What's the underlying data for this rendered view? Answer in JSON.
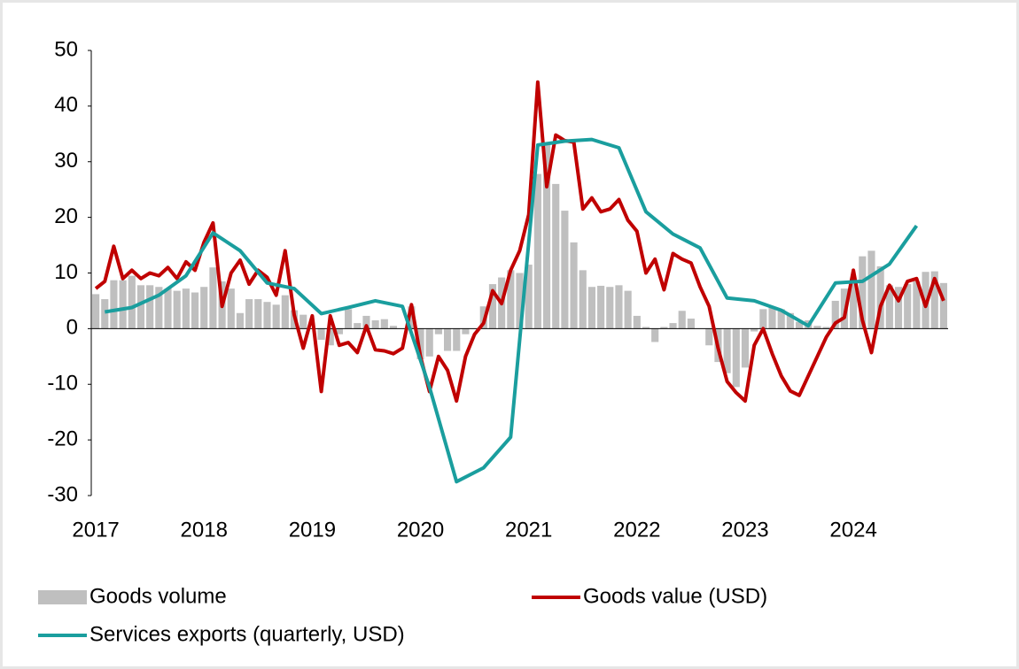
{
  "chart_data": {
    "type": "bar_line",
    "x": [
      0,
      1,
      2,
      3,
      4,
      5,
      6,
      7,
      8,
      9,
      10,
      11,
      12,
      13,
      14,
      15,
      16,
      17,
      18,
      19,
      20,
      21,
      22,
      23,
      24,
      25,
      26,
      27,
      28,
      29,
      30,
      31,
      32,
      33,
      34,
      35,
      36,
      37,
      38,
      39,
      40,
      41,
      42,
      43,
      44,
      45,
      46,
      47,
      48,
      49,
      50,
      51,
      52,
      53,
      54,
      55,
      56,
      57,
      58,
      59,
      60,
      61,
      62,
      63,
      64,
      65,
      66,
      67,
      68,
      69,
      70,
      71,
      72,
      73,
      74,
      75,
      76,
      77,
      78,
      79,
      80,
      81,
      82,
      83,
      84,
      85,
      86,
      87,
      88,
      89,
      90,
      91,
      92,
      93,
      94
    ],
    "xlim": [
      -0.5,
      94.5
    ],
    "xticks": [
      {
        "value": 0,
        "label": "2017"
      },
      {
        "value": 12,
        "label": "2018"
      },
      {
        "value": 24,
        "label": "2019"
      },
      {
        "value": 36,
        "label": "2020"
      },
      {
        "value": 48,
        "label": "2021"
      },
      {
        "value": 60,
        "label": "2022"
      },
      {
        "value": 72,
        "label": "2023"
      },
      {
        "value": 84,
        "label": "2024"
      }
    ],
    "ylim": [
      -30,
      50
    ],
    "yticks": [
      -30,
      -20,
      -10,
      0,
      10,
      20,
      30,
      40,
      50
    ],
    "grid": false,
    "series": [
      {
        "name": "Goods volume",
        "kind": "bar",
        "color": "#bfbfbf",
        "values": [
          6.2,
          5.3,
          8.7,
          8.7,
          9.5,
          7.8,
          7.8,
          7.5,
          7.2,
          6.8,
          7.2,
          6.5,
          7.5,
          11,
          8.5,
          7.2,
          2.8,
          5.3,
          5.3,
          4.8,
          4.3,
          6,
          3.3,
          2.5,
          0,
          -2,
          -3,
          -1,
          3.5,
          1,
          2.3,
          1.5,
          1.7,
          0.5,
          0,
          4,
          -5.5,
          -5,
          -1,
          -4,
          -4,
          -1,
          0,
          4,
          8,
          9.2,
          10.5,
          10,
          11.5,
          27.8,
          33,
          26,
          21.2,
          15.5,
          10.5,
          7.5,
          7.7,
          7.5,
          7.8,
          6.8,
          2.3,
          0.3,
          -2.4,
          0.3,
          1,
          3.2,
          1.8,
          0,
          -3,
          -6,
          -8,
          -10.5,
          -7,
          -0.5,
          3.5,
          3.8,
          3.5,
          2.8,
          1.2,
          1.5,
          0.5,
          0.3,
          5,
          7.2,
          8.8,
          13,
          14,
          11.2,
          7.8,
          7.5,
          8,
          8.5,
          10.2,
          10.3,
          8.2
        ]
      },
      {
        "name": "Goods value (USD)",
        "kind": "line",
        "color": "#c00000",
        "values": [
          7.2,
          8.5,
          14.8,
          9,
          10.5,
          9,
          10,
          9.5,
          11,
          9,
          12,
          10.5,
          15.5,
          19,
          4,
          10,
          12.3,
          8,
          10.5,
          9.2,
          6,
          14,
          2.5,
          -3.5,
          2.3,
          -11.3,
          2.3,
          -3,
          -2.5,
          -4.3,
          0.5,
          -3.8,
          -4,
          -4.5,
          -3.5,
          4.3,
          -5,
          -11.3,
          -5,
          -7.5,
          -13,
          -5,
          -1,
          1,
          6.8,
          4.5,
          10.5,
          14,
          20.5,
          44.3,
          25.5,
          34.8,
          33.8,
          33.5,
          21.5,
          23.5,
          21,
          21.5,
          23.2,
          19.5,
          17.5,
          10,
          12.5,
          7,
          13.5,
          12.5,
          11.8,
          7.5,
          4,
          -3.5,
          -9.5,
          -11.5,
          -13,
          -3,
          0,
          -4.5,
          -8.5,
          -11.2,
          -12,
          -8.5,
          -5,
          -1.5,
          1,
          2,
          10.5,
          1.5,
          -4.3,
          4,
          7.8,
          5,
          8.5,
          9,
          4,
          9,
          5
        ]
      },
      {
        "name": "Services exports (quarterly, USD)",
        "kind": "line",
        "color": "#1a9e9e",
        "x": [
          1,
          4,
          7,
          10,
          13,
          16,
          19,
          22,
          25,
          28,
          31,
          34,
          37,
          40,
          43,
          46,
          49,
          52,
          55,
          58,
          61,
          64,
          67,
          70,
          73,
          76,
          79,
          82,
          85,
          88,
          91
        ],
        "values": [
          3.0,
          3.8,
          6.0,
          9.5,
          17.2,
          14,
          8.2,
          7.2,
          2.7,
          3.8,
          5,
          4,
          -10.5,
          -27.5,
          -25,
          -19.5,
          33,
          33.7,
          34,
          32.5,
          21,
          17,
          14.5,
          5.5,
          5,
          3.3,
          0.5,
          8.2,
          8.5,
          11.6,
          18.5
        ]
      }
    ]
  }
}
